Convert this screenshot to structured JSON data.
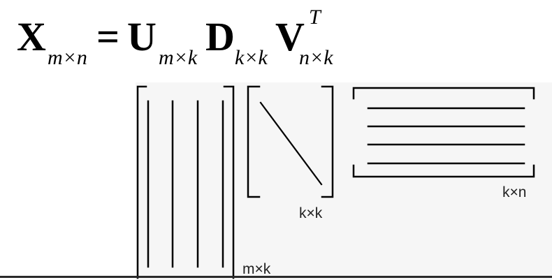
{
  "equation": {
    "lhs_symbol": "X",
    "lhs_subscript": "m×n",
    "equals": "=",
    "u_symbol": "U",
    "u_subscript": "m×k",
    "d_symbol": "D",
    "d_subscript": "k×k",
    "v_symbol": "V",
    "v_superscript": "T",
    "v_subscript": "n×k"
  },
  "matrices": {
    "u_label": "m×k",
    "d_label": "k×k",
    "vt_label": "k×n"
  },
  "colors": {
    "ink": "#000000",
    "label": "#222222",
    "panel": "#f6f6f6"
  }
}
